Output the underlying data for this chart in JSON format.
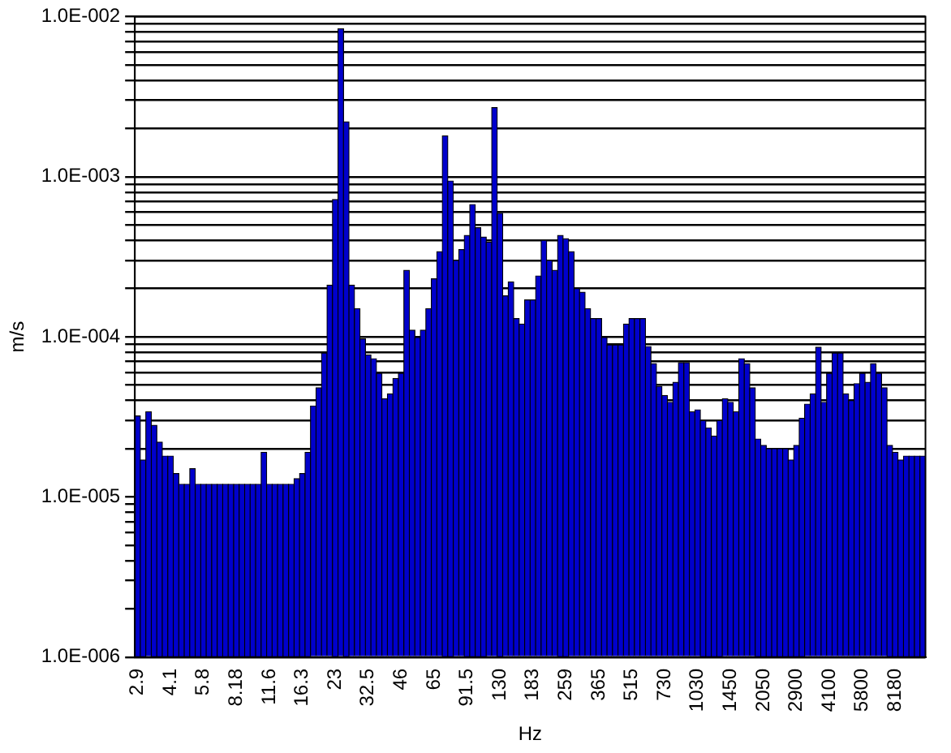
{
  "chart_data": {
    "type": "bar",
    "xlabel": "Hz",
    "ylabel": "m/s",
    "log": "y",
    "grid": "y",
    "color": "#0000cc",
    "categories": [
      "2.9",
      null,
      null,
      null,
      null,
      null,
      "4.1",
      null,
      null,
      null,
      null,
      null,
      "5.8",
      null,
      null,
      null,
      null,
      null,
      "8.18",
      null,
      null,
      null,
      null,
      null,
      "11.6",
      null,
      null,
      null,
      null,
      null,
      "16.3",
      null,
      null,
      null,
      null,
      null,
      "23",
      null,
      null,
      null,
      null,
      null,
      "32.5",
      null,
      null,
      null,
      null,
      null,
      "46",
      null,
      null,
      null,
      null,
      null,
      "65",
      null,
      null,
      null,
      null,
      null,
      "91.5",
      null,
      null,
      null,
      null,
      null,
      "130",
      null,
      null,
      null,
      null,
      null,
      "183",
      null,
      null,
      null,
      null,
      null,
      "259",
      null,
      null,
      null,
      null,
      null,
      "365",
      null,
      null,
      null,
      null,
      null,
      "515",
      null,
      null,
      null,
      null,
      null,
      "730",
      null,
      null,
      null,
      null,
      null,
      "1030",
      null,
      null,
      null,
      null,
      null,
      "1450",
      null,
      null,
      null,
      null,
      null,
      "2050",
      null,
      null,
      null,
      null,
      null,
      "2900",
      null,
      null,
      null,
      null,
      null,
      "4100",
      null,
      null,
      null,
      null,
      null,
      "5800",
      null,
      null,
      null,
      null,
      null,
      "8180",
      null,
      null,
      null,
      null,
      null
    ],
    "values": [
      3.2e-05,
      1.7e-05,
      3.4e-05,
      2.8e-05,
      2.2e-05,
      1.8e-05,
      1.8e-05,
      1.4e-05,
      1.2e-05,
      1.2e-05,
      1.5e-05,
      1.2e-05,
      1.2e-05,
      1.2e-05,
      1.2e-05,
      1.2e-05,
      1.2e-05,
      1.2e-05,
      1.2e-05,
      1.2e-05,
      1.2e-05,
      1.2e-05,
      1.2e-05,
      1.9e-05,
      1.2e-05,
      1.2e-05,
      1.2e-05,
      1.2e-05,
      1.2e-05,
      1.3e-05,
      1.4e-05,
      1.9e-05,
      3.7e-05,
      4.8e-05,
      7.9e-05,
      0.00021,
      0.00072,
      0.0084,
      0.0022,
      0.00021,
      0.00015,
      9.7e-05,
      7.7e-05,
      7.3e-05,
      5.9e-05,
      4.1e-05,
      4.4e-05,
      5.5e-05,
      5.9e-05,
      0.00026,
      0.00011,
      9.9e-05,
      0.00011,
      0.00015,
      0.00023,
      0.00034,
      0.0018,
      0.00094,
      0.0003,
      0.00035,
      0.00043,
      0.00067,
      0.00048,
      0.00042,
      0.00039,
      0.0027,
      0.00059,
      0.00018,
      0.00022,
      0.00013,
      0.00012,
      0.00017,
      0.00017,
      0.00024,
      0.0004,
      0.0003,
      0.00026,
      0.00043,
      0.00041,
      0.00034,
      0.0002,
      0.00019,
      0.00015,
      0.00013,
      0.00013,
      9.9e-05,
      8.9e-05,
      8.9e-05,
      8.9e-05,
      0.00012,
      0.00013,
      0.00013,
      0.00013,
      8.7e-05,
      6.8e-05,
      4.9e-05,
      4.3e-05,
      3.9e-05,
      5.2e-05,
      6.9e-05,
      6.9e-05,
      3.4e-05,
      3.5e-05,
      3e-05,
      2.7e-05,
      2.4e-05,
      3e-05,
      4.1e-05,
      3.9e-05,
      3.4e-05,
      7.3e-05,
      6.8e-05,
      4.8e-05,
      2.3e-05,
      2.1e-05,
      2e-05,
      2e-05,
      2e-05,
      2e-05,
      1.7e-05,
      2.1e-05,
      3.1e-05,
      3.8e-05,
      4.4e-05,
      8.6e-05,
      3.9e-05,
      5.9e-05,
      7.9e-05,
      7.9e-05,
      4.4e-05,
      4e-05,
      5.1e-05,
      5.9e-05,
      5.2e-05,
      6.8e-05,
      5.9e-05,
      4.8e-05,
      2.1e-05,
      1.9e-05,
      1.7e-05,
      1.8e-05,
      1.8e-05,
      1.8e-05,
      1.8e-05
    ],
    "ylim": [
      1e-06,
      0.01
    ],
    "yticks": [
      {
        "value": 1e-06,
        "label": "1.0E-006"
      },
      {
        "value": 2e-06,
        "label": null
      },
      {
        "value": 3e-06,
        "label": null
      },
      {
        "value": 4e-06,
        "label": null
      },
      {
        "value": 5e-06,
        "label": null
      },
      {
        "value": 6e-06,
        "label": null
      },
      {
        "value": 7e-06,
        "label": null
      },
      {
        "value": 8e-06,
        "label": null
      },
      {
        "value": 9e-06,
        "label": null
      },
      {
        "value": 1e-05,
        "label": "1.0E-005"
      },
      {
        "value": 2e-05,
        "label": null
      },
      {
        "value": 3e-05,
        "label": null
      },
      {
        "value": 4e-05,
        "label": null
      },
      {
        "value": 5e-05,
        "label": null
      },
      {
        "value": 6e-05,
        "label": null
      },
      {
        "value": 7e-05,
        "label": null
      },
      {
        "value": 8e-05,
        "label": null
      },
      {
        "value": 9e-05,
        "label": null
      },
      {
        "value": 0.0001,
        "label": "1.0E-004"
      },
      {
        "value": 0.0002,
        "label": null
      },
      {
        "value": 0.0003,
        "label": null
      },
      {
        "value": 0.0004,
        "label": null
      },
      {
        "value": 0.0005,
        "label": null
      },
      {
        "value": 0.0006,
        "label": null
      },
      {
        "value": 0.0007,
        "label": null
      },
      {
        "value": 0.0008,
        "label": null
      },
      {
        "value": 0.0009,
        "label": null
      },
      {
        "value": 0.001,
        "label": "1.0E-003"
      },
      {
        "value": 0.002,
        "label": null
      },
      {
        "value": 0.003,
        "label": null
      },
      {
        "value": 0.004,
        "label": null
      },
      {
        "value": 0.005,
        "label": null
      },
      {
        "value": 0.006,
        "label": null
      },
      {
        "value": 0.007,
        "label": null
      },
      {
        "value": 0.008,
        "label": null
      },
      {
        "value": 0.009,
        "label": null
      },
      {
        "value": 0.01,
        "label": "1.0E-002"
      }
    ]
  }
}
